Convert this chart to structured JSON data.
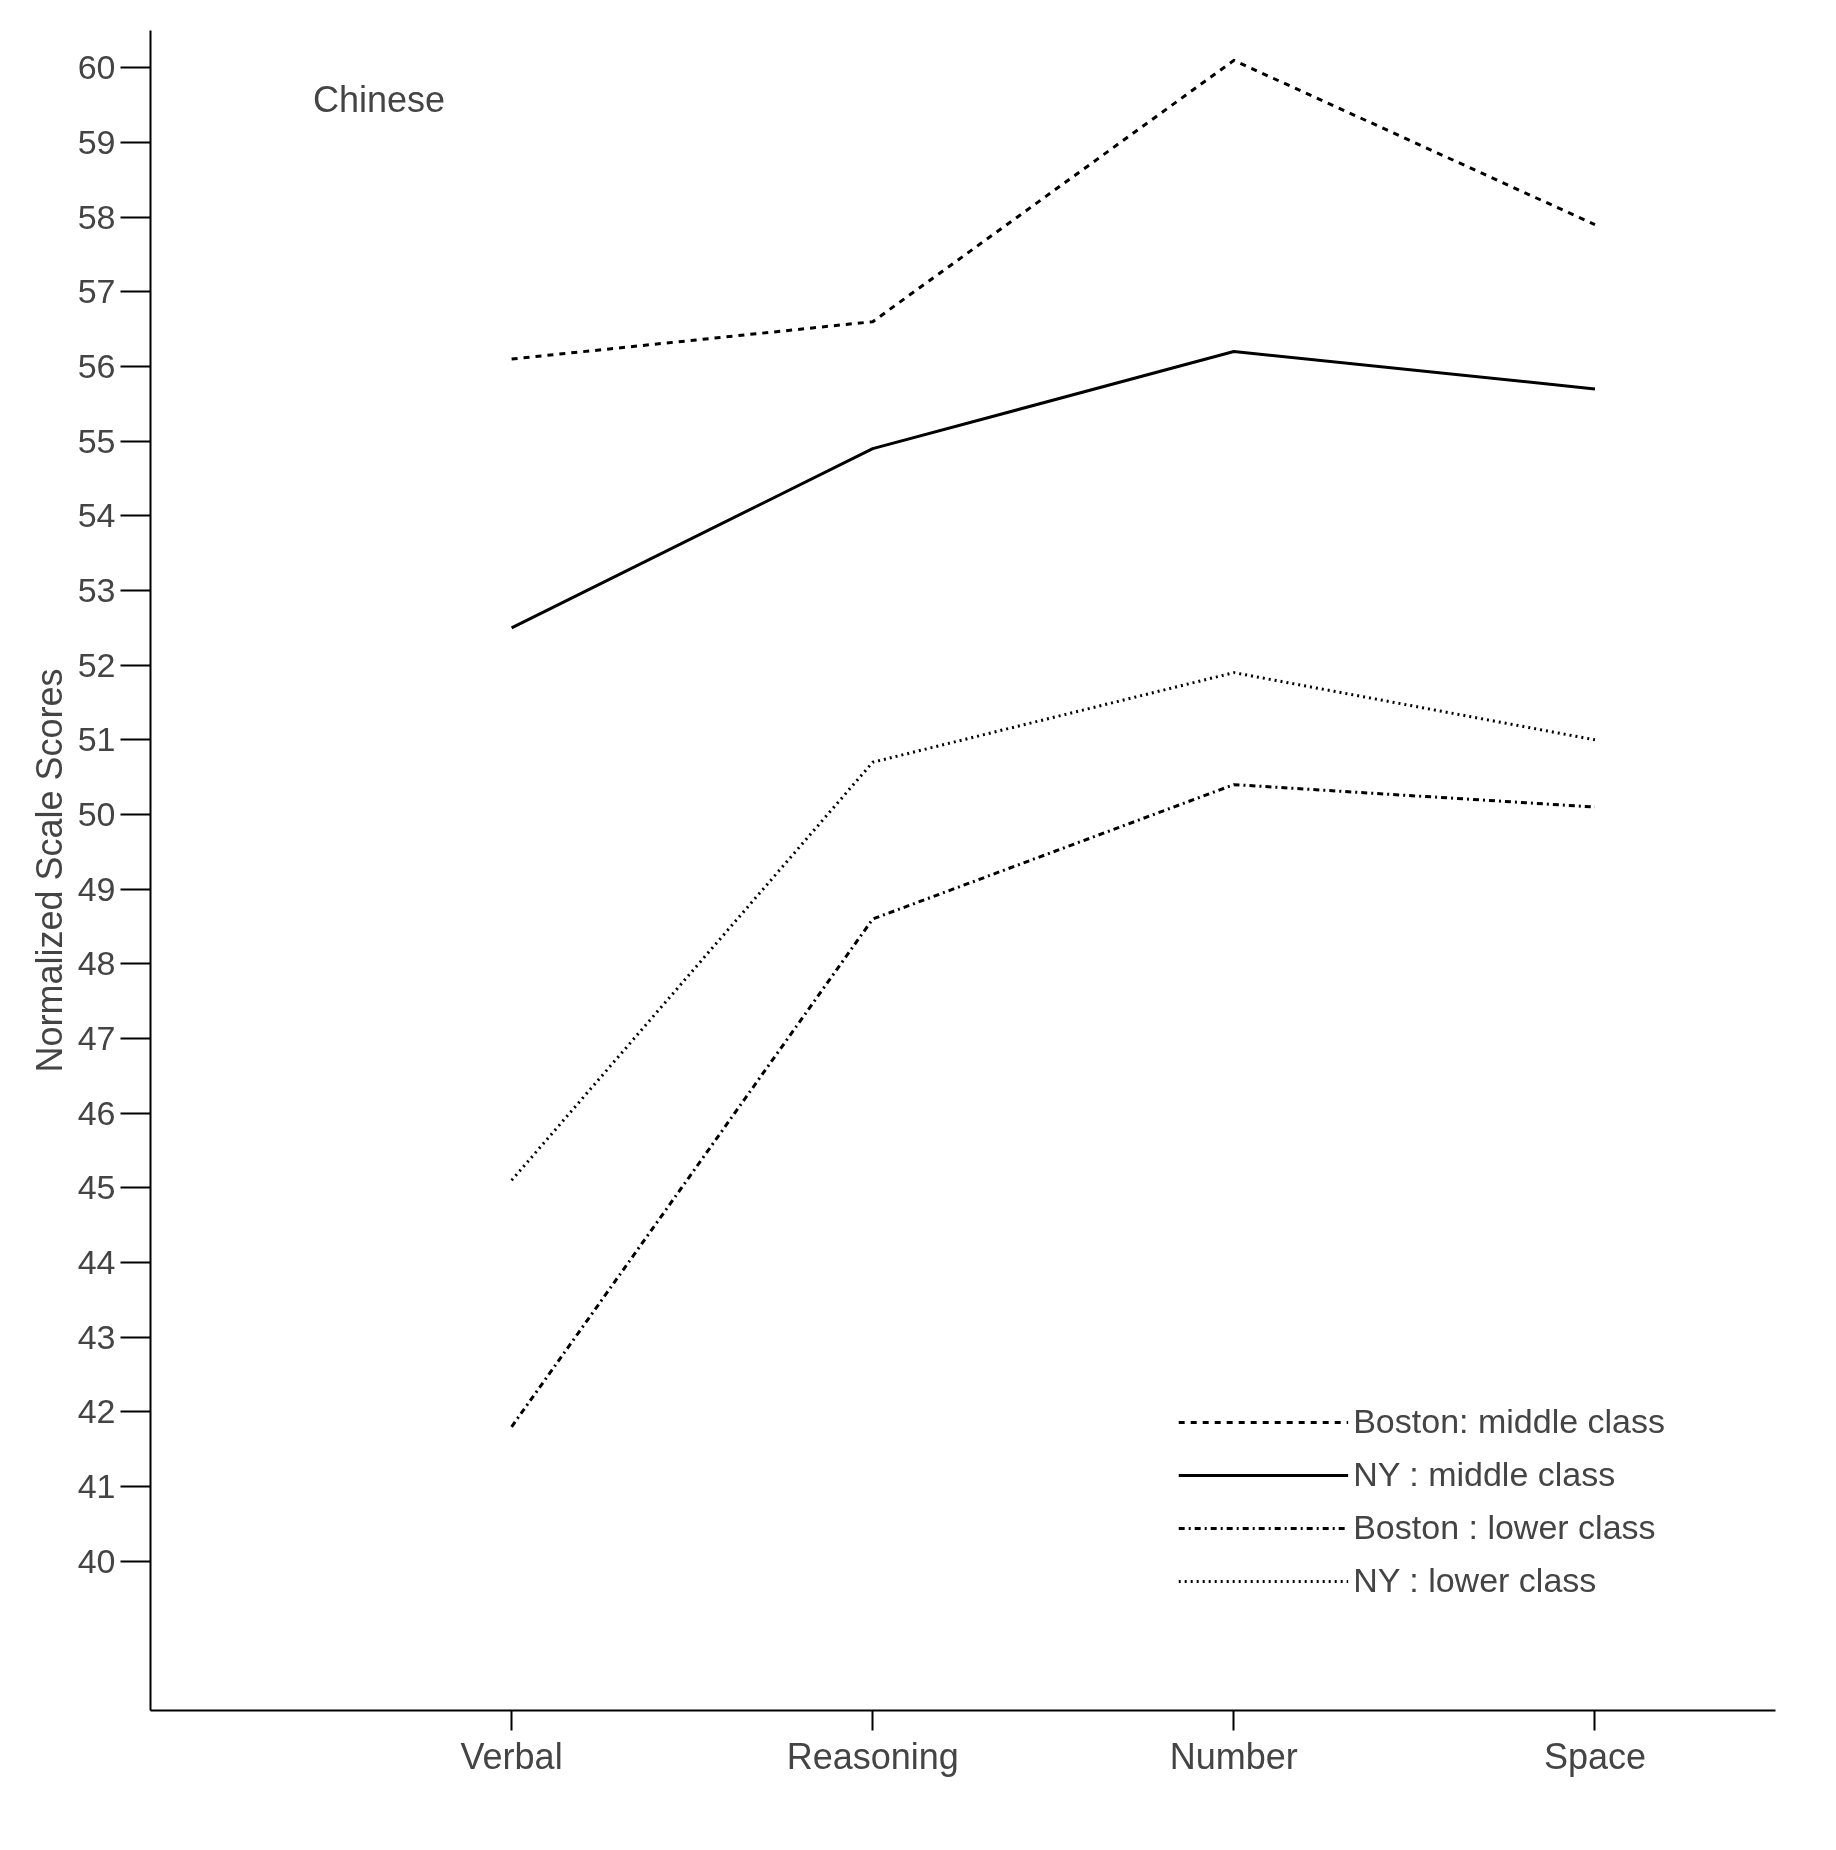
{
  "chart_data": {
    "type": "line",
    "ylabel": "Normalized Scale Scores",
    "categories": [
      "Verbal",
      "Reasoning",
      "Number",
      "Space"
    ],
    "series": [
      {
        "name": "Boston: middle class",
        "color": "#000000",
        "line_style": "dashed",
        "values": [
          56.1,
          56.6,
          60.1,
          57.9
        ]
      },
      {
        "name": "NY : middle class",
        "color": "#000000",
        "line_style": "solid",
        "values": [
          52.5,
          54.9,
          56.2,
          55.7
        ]
      },
      {
        "name": "Boston : lower class",
        "color": "#000000",
        "line_style": "dashdot",
        "values": [
          41.8,
          48.6,
          50.4,
          50.1
        ]
      },
      {
        "name": "NY : lower class",
        "color": "#000000",
        "line_style": "dotted",
        "values": [
          45.1,
          50.7,
          51.9,
          51.0
        ]
      }
    ],
    "ylim": [
      38,
      60.5
    ],
    "yticks": [
      40,
      41,
      42,
      43,
      44,
      45,
      46,
      47,
      48,
      49,
      50,
      51,
      52,
      53,
      54,
      55,
      56,
      57,
      58,
      59,
      60
    ],
    "annotations": [
      "Chinese"
    ],
    "grid": false,
    "legend": "bottom right",
    "marker": "none"
  }
}
